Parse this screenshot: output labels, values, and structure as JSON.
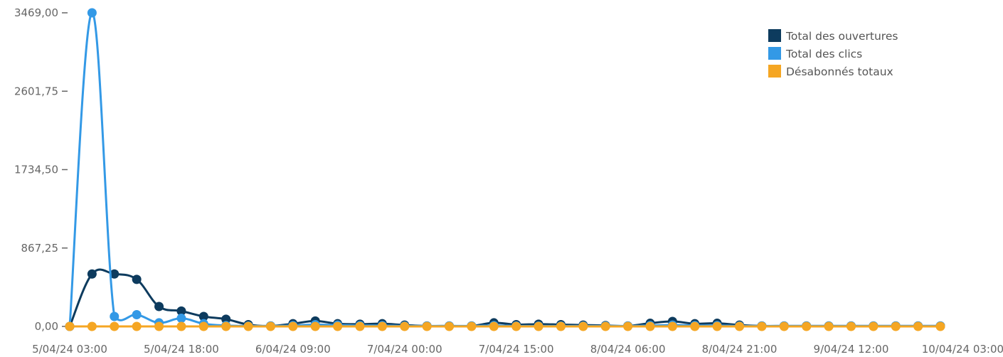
{
  "chart_data": {
    "type": "line",
    "title": "",
    "xlabel": "",
    "ylabel": "",
    "ylim": [
      0,
      3469
    ],
    "y_ticks": [
      "0,00",
      "867,25",
      "1734,50",
      "2601,75",
      "3469,00"
    ],
    "y_tick_values": [
      0,
      867.25,
      1734.5,
      2601.75,
      3469
    ],
    "x_tick_labels": [
      "5/04/24 03:00",
      "5/04/24 18:00",
      "6/04/24 09:00",
      "7/04/24 00:00",
      "7/04/24 15:00",
      "8/04/24 06:00",
      "8/04/24 21:00",
      "9/04/24 12:00",
      "10/04/24 03:00"
    ],
    "x_step_hours": 3,
    "grid": false,
    "legend_position": "top-right",
    "series": [
      {
        "name": "Total des ouvertures",
        "color": "#0d3b5e",
        "values": [
          0,
          580,
          580,
          520,
          220,
          170,
          110,
          80,
          20,
          5,
          30,
          60,
          30,
          25,
          30,
          15,
          5,
          5,
          5,
          40,
          20,
          25,
          20,
          15,
          10,
          5,
          35,
          55,
          30,
          35,
          15,
          5,
          5,
          5,
          5,
          5,
          5,
          5,
          5,
          5
        ]
      },
      {
        "name": "Total des clics",
        "color": "#3399e6",
        "values": [
          0,
          3469,
          110,
          130,
          40,
          90,
          30,
          10,
          5,
          5,
          10,
          20,
          15,
          10,
          10,
          5,
          5,
          5,
          5,
          10,
          5,
          5,
          5,
          5,
          5,
          5,
          10,
          15,
          10,
          10,
          5,
          5,
          5,
          5,
          5,
          5,
          5,
          5,
          5,
          5
        ]
      },
      {
        "name": "Désabonnés totaux",
        "color": "#f5a623",
        "values": [
          0,
          0,
          0,
          0,
          0,
          0,
          0,
          0,
          0,
          0,
          0,
          0,
          0,
          0,
          0,
          0,
          0,
          0,
          0,
          0,
          0,
          0,
          0,
          0,
          0,
          0,
          0,
          0,
          0,
          0,
          0,
          0,
          0,
          0,
          0,
          0,
          0,
          0,
          0,
          0
        ]
      }
    ]
  }
}
